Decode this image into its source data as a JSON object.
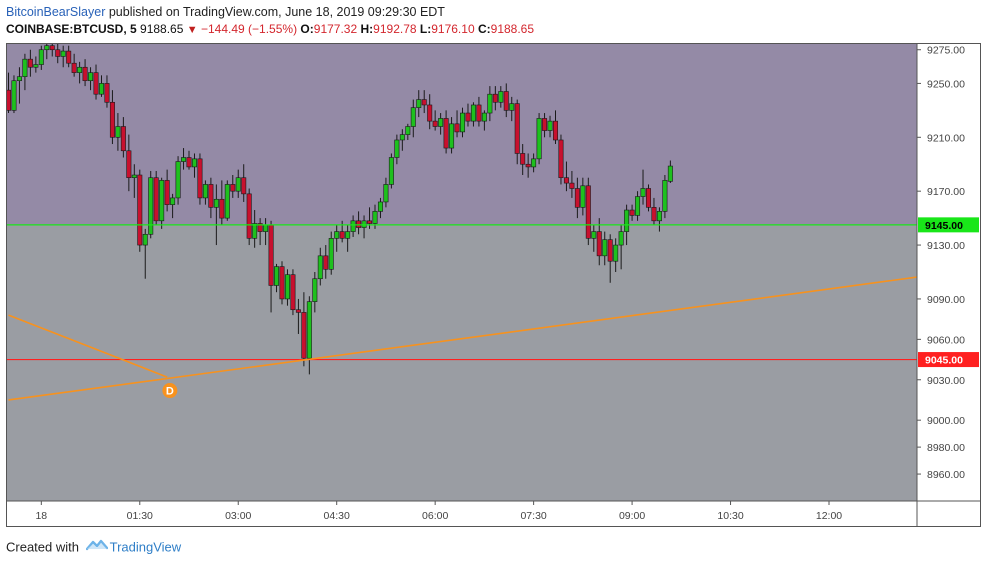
{
  "header": {
    "author": "BitcoinBearSlayer",
    "published_text": " published on TradingView.com, June 18, 2019 09:29:30 EDT",
    "symbol": "COINBASE:BTCUSD, 5",
    "price": "9188.65",
    "change": "−144.49 (−1.55%)",
    "open_label": "O:",
    "open_value": "9177.32",
    "high_label": "H:",
    "high_value": "9192.78",
    "low_label": "L:",
    "low_value": "9176.10",
    "close_label": "C:",
    "close_value": "9188.65"
  },
  "footer": {
    "created_text": "Created with",
    "brand": "TradingView"
  },
  "colors": {
    "up": "#1ec01e",
    "down": "#c8102e",
    "upper_zone": "#948aa6",
    "lower_zone": "#9a9da3",
    "green_line": "#19e619",
    "red_line": "#ff2020",
    "trend_line": "#f7921e"
  },
  "chart_data": {
    "type": "candlestick",
    "ylim": [
      8940,
      9280
    ],
    "y_ticks": [
      "9275.00",
      "9250.00",
      "9210.00",
      "9170.00",
      "9130.00",
      "9090.00",
      "9060.00",
      "9030.00",
      "9000.00",
      "8980.00",
      "8960.00"
    ],
    "y_tick_values": [
      9275,
      9250,
      9210,
      9170,
      9130,
      9090,
      9060,
      9030,
      9000,
      8980,
      8960
    ],
    "x_ticks": [
      "18",
      "01:30",
      "03:00",
      "04:30",
      "06:00",
      "07:30",
      "09:00",
      "10:30",
      "12:00"
    ],
    "x_tick_index": [
      6,
      24,
      42,
      60,
      78,
      96,
      114,
      132,
      150
    ],
    "zone_boundary": 9145,
    "horizontal_lines": [
      {
        "price": 9145,
        "label": "9145.00",
        "color": "#19e619"
      },
      {
        "price": 9045,
        "label": "9045.00",
        "color": "#ff2020"
      }
    ],
    "trend_lines": [
      {
        "from": [
          0,
          9015
        ],
        "to": [
          167.5,
          9107
        ]
      },
      {
        "from": [
          0,
          9078
        ],
        "to": [
          29,
          9032
        ]
      }
    ],
    "marker": {
      "label": "D",
      "index": 29.5,
      "price": 9022
    },
    "candles": [
      {
        "o": 9245,
        "h": 9258,
        "l": 9228,
        "c": 9230
      },
      {
        "o": 9230,
        "h": 9256,
        "l": 9228,
        "c": 9252
      },
      {
        "o": 9252,
        "h": 9262,
        "l": 9235,
        "c": 9255
      },
      {
        "o": 9255,
        "h": 9272,
        "l": 9245,
        "c": 9268
      },
      {
        "o": 9268,
        "h": 9275,
        "l": 9255,
        "c": 9262
      },
      {
        "o": 9262,
        "h": 9270,
        "l": 9258,
        "c": 9264
      },
      {
        "o": 9264,
        "h": 9278,
        "l": 9260,
        "c": 9275
      },
      {
        "o": 9275,
        "h": 9282,
        "l": 9268,
        "c": 9278
      },
      {
        "o": 9278,
        "h": 9282,
        "l": 9270,
        "c": 9275
      },
      {
        "o": 9275,
        "h": 9280,
        "l": 9265,
        "c": 9270
      },
      {
        "o": 9270,
        "h": 9278,
        "l": 9262,
        "c": 9274
      },
      {
        "o": 9274,
        "h": 9278,
        "l": 9262,
        "c": 9265
      },
      {
        "o": 9265,
        "h": 9272,
        "l": 9255,
        "c": 9258
      },
      {
        "o": 9258,
        "h": 9266,
        "l": 9250,
        "c": 9262
      },
      {
        "o": 9262,
        "h": 9268,
        "l": 9248,
        "c": 9252
      },
      {
        "o": 9252,
        "h": 9262,
        "l": 9245,
        "c": 9258
      },
      {
        "o": 9258,
        "h": 9264,
        "l": 9238,
        "c": 9242
      },
      {
        "o": 9242,
        "h": 9256,
        "l": 9240,
        "c": 9250
      },
      {
        "o": 9250,
        "h": 9256,
        "l": 9232,
        "c": 9236
      },
      {
        "o": 9236,
        "h": 9245,
        "l": 9205,
        "c": 9210
      },
      {
        "o": 9210,
        "h": 9228,
        "l": 9200,
        "c": 9218
      },
      {
        "o": 9218,
        "h": 9225,
        "l": 9195,
        "c": 9200
      },
      {
        "o": 9200,
        "h": 9212,
        "l": 9170,
        "c": 9180
      },
      {
        "o": 9180,
        "h": 9190,
        "l": 9165,
        "c": 9182
      },
      {
        "o": 9182,
        "h": 9186,
        "l": 9125,
        "c": 9130
      },
      {
        "o": 9130,
        "h": 9142,
        "l": 9105,
        "c": 9138
      },
      {
        "o": 9138,
        "h": 9185,
        "l": 9135,
        "c": 9180
      },
      {
        "o": 9180,
        "h": 9185,
        "l": 9145,
        "c": 9148
      },
      {
        "o": 9148,
        "h": 9180,
        "l": 9142,
        "c": 9178
      },
      {
        "o": 9178,
        "h": 9186,
        "l": 9155,
        "c": 9160
      },
      {
        "o": 9160,
        "h": 9168,
        "l": 9150,
        "c": 9165
      },
      {
        "o": 9165,
        "h": 9196,
        "l": 9160,
        "c": 9192
      },
      {
        "o": 9192,
        "h": 9202,
        "l": 9186,
        "c": 9195
      },
      {
        "o": 9195,
        "h": 9200,
        "l": 9186,
        "c": 9188
      },
      {
        "o": 9188,
        "h": 9198,
        "l": 9180,
        "c": 9194
      },
      {
        "o": 9194,
        "h": 9198,
        "l": 9160,
        "c": 9165
      },
      {
        "o": 9165,
        "h": 9178,
        "l": 9160,
        "c": 9175
      },
      {
        "o": 9175,
        "h": 9180,
        "l": 9150,
        "c": 9158
      },
      {
        "o": 9158,
        "h": 9175,
        "l": 9130,
        "c": 9164
      },
      {
        "o": 9164,
        "h": 9178,
        "l": 9145,
        "c": 9150
      },
      {
        "o": 9150,
        "h": 9178,
        "l": 9148,
        "c": 9175
      },
      {
        "o": 9175,
        "h": 9182,
        "l": 9165,
        "c": 9170
      },
      {
        "o": 9170,
        "h": 9186,
        "l": 9165,
        "c": 9180
      },
      {
        "o": 9180,
        "h": 9190,
        "l": 9162,
        "c": 9168
      },
      {
        "o": 9168,
        "h": 9172,
        "l": 9130,
        "c": 9135
      },
      {
        "o": 9135,
        "h": 9156,
        "l": 9128,
        "c": 9146
      },
      {
        "o": 9146,
        "h": 9150,
        "l": 9130,
        "c": 9140
      },
      {
        "o": 9140,
        "h": 9150,
        "l": 9130,
        "c": 9145
      },
      {
        "o": 9145,
        "h": 9148,
        "l": 9080,
        "c": 9100
      },
      {
        "o": 9100,
        "h": 9116,
        "l": 9095,
        "c": 9114
      },
      {
        "o": 9114,
        "h": 9118,
        "l": 9086,
        "c": 9090
      },
      {
        "o": 9090,
        "h": 9112,
        "l": 9085,
        "c": 9108
      },
      {
        "o": 9108,
        "h": 9112,
        "l": 9078,
        "c": 9082
      },
      {
        "o": 9082,
        "h": 9090,
        "l": 9064,
        "c": 9080
      },
      {
        "o": 9080,
        "h": 9095,
        "l": 9040,
        "c": 9046
      },
      {
        "o": 9046,
        "h": 9092,
        "l": 9034,
        "c": 9088
      },
      {
        "o": 9088,
        "h": 9110,
        "l": 9080,
        "c": 9105
      },
      {
        "o": 9105,
        "h": 9128,
        "l": 9100,
        "c": 9122
      },
      {
        "o": 9122,
        "h": 9130,
        "l": 9105,
        "c": 9112
      },
      {
        "o": 9112,
        "h": 9140,
        "l": 9108,
        "c": 9135
      },
      {
        "o": 9135,
        "h": 9145,
        "l": 9125,
        "c": 9140
      },
      {
        "o": 9140,
        "h": 9148,
        "l": 9132,
        "c": 9135
      },
      {
        "o": 9135,
        "h": 9145,
        "l": 9125,
        "c": 9140
      },
      {
        "o": 9140,
        "h": 9152,
        "l": 9136,
        "c": 9148
      },
      {
        "o": 9148,
        "h": 9155,
        "l": 9138,
        "c": 9143
      },
      {
        "o": 9143,
        "h": 9152,
        "l": 9135,
        "c": 9148
      },
      {
        "o": 9148,
        "h": 9158,
        "l": 9142,
        "c": 9146
      },
      {
        "o": 9146,
        "h": 9160,
        "l": 9142,
        "c": 9155
      },
      {
        "o": 9155,
        "h": 9165,
        "l": 9150,
        "c": 9162
      },
      {
        "o": 9162,
        "h": 9180,
        "l": 9158,
        "c": 9175
      },
      {
        "o": 9175,
        "h": 9198,
        "l": 9172,
        "c": 9195
      },
      {
        "o": 9195,
        "h": 9212,
        "l": 9190,
        "c": 9208
      },
      {
        "o": 9208,
        "h": 9216,
        "l": 9200,
        "c": 9212
      },
      {
        "o": 9212,
        "h": 9220,
        "l": 9208,
        "c": 9218
      },
      {
        "o": 9218,
        "h": 9238,
        "l": 9210,
        "c": 9232
      },
      {
        "o": 9232,
        "h": 9245,
        "l": 9225,
        "c": 9238
      },
      {
        "o": 9238,
        "h": 9245,
        "l": 9228,
        "c": 9234
      },
      {
        "o": 9234,
        "h": 9242,
        "l": 9216,
        "c": 9222
      },
      {
        "o": 9222,
        "h": 9230,
        "l": 9215,
        "c": 9218
      },
      {
        "o": 9218,
        "h": 9228,
        "l": 9212,
        "c": 9224
      },
      {
        "o": 9224,
        "h": 9230,
        "l": 9198,
        "c": 9202
      },
      {
        "o": 9202,
        "h": 9225,
        "l": 9198,
        "c": 9220
      },
      {
        "o": 9220,
        "h": 9230,
        "l": 9210,
        "c": 9214
      },
      {
        "o": 9214,
        "h": 9232,
        "l": 9210,
        "c": 9228
      },
      {
        "o": 9228,
        "h": 9235,
        "l": 9218,
        "c": 9222
      },
      {
        "o": 9222,
        "h": 9236,
        "l": 9218,
        "c": 9234
      },
      {
        "o": 9234,
        "h": 9240,
        "l": 9218,
        "c": 9222
      },
      {
        "o": 9222,
        "h": 9230,
        "l": 9215,
        "c": 9228
      },
      {
        "o": 9228,
        "h": 9248,
        "l": 9222,
        "c": 9242
      },
      {
        "o": 9242,
        "h": 9248,
        "l": 9230,
        "c": 9236
      },
      {
        "o": 9236,
        "h": 9248,
        "l": 9232,
        "c": 9244
      },
      {
        "o": 9244,
        "h": 9250,
        "l": 9225,
        "c": 9230
      },
      {
        "o": 9230,
        "h": 9240,
        "l": 9222,
        "c": 9235
      },
      {
        "o": 9235,
        "h": 9238,
        "l": 9190,
        "c": 9198
      },
      {
        "o": 9198,
        "h": 9205,
        "l": 9182,
        "c": 9190
      },
      {
        "o": 9190,
        "h": 9198,
        "l": 9180,
        "c": 9188
      },
      {
        "o": 9188,
        "h": 9198,
        "l": 9184,
        "c": 9194
      },
      {
        "o": 9194,
        "h": 9228,
        "l": 9190,
        "c": 9224
      },
      {
        "o": 9224,
        "h": 9228,
        "l": 9210,
        "c": 9215
      },
      {
        "o": 9215,
        "h": 9226,
        "l": 9210,
        "c": 9222
      },
      {
        "o": 9222,
        "h": 9230,
        "l": 9205,
        "c": 9208
      },
      {
        "o": 9208,
        "h": 9212,
        "l": 9175,
        "c": 9180
      },
      {
        "o": 9180,
        "h": 9192,
        "l": 9170,
        "c": 9176
      },
      {
        "o": 9176,
        "h": 9185,
        "l": 9165,
        "c": 9172
      },
      {
        "o": 9172,
        "h": 9180,
        "l": 9150,
        "c": 9158
      },
      {
        "o": 9158,
        "h": 9180,
        "l": 9152,
        "c": 9174
      },
      {
        "o": 9174,
        "h": 9180,
        "l": 9130,
        "c": 9135
      },
      {
        "o": 9135,
        "h": 9145,
        "l": 9125,
        "c": 9140
      },
      {
        "o": 9140,
        "h": 9150,
        "l": 9115,
        "c": 9122
      },
      {
        "o": 9122,
        "h": 9140,
        "l": 9115,
        "c": 9134
      },
      {
        "o": 9134,
        "h": 9138,
        "l": 9102,
        "c": 9118
      },
      {
        "o": 9118,
        "h": 9135,
        "l": 9110,
        "c": 9130
      },
      {
        "o": 9130,
        "h": 9145,
        "l": 9112,
        "c": 9140
      },
      {
        "o": 9140,
        "h": 9160,
        "l": 9130,
        "c": 9156
      },
      {
        "o": 9156,
        "h": 9160,
        "l": 9148,
        "c": 9152
      },
      {
        "o": 9152,
        "h": 9170,
        "l": 9148,
        "c": 9166
      },
      {
        "o": 9166,
        "h": 9186,
        "l": 9160,
        "c": 9172
      },
      {
        "o": 9172,
        "h": 9175,
        "l": 9155,
        "c": 9158
      },
      {
        "o": 9158,
        "h": 9165,
        "l": 9145,
        "c": 9148
      },
      {
        "o": 9148,
        "h": 9158,
        "l": 9140,
        "c": 9155
      },
      {
        "o": 9155,
        "h": 9182,
        "l": 9150,
        "c": 9178
      },
      {
        "o": 9177.32,
        "h": 9192.78,
        "l": 9176.1,
        "c": 9188.65
      }
    ]
  }
}
